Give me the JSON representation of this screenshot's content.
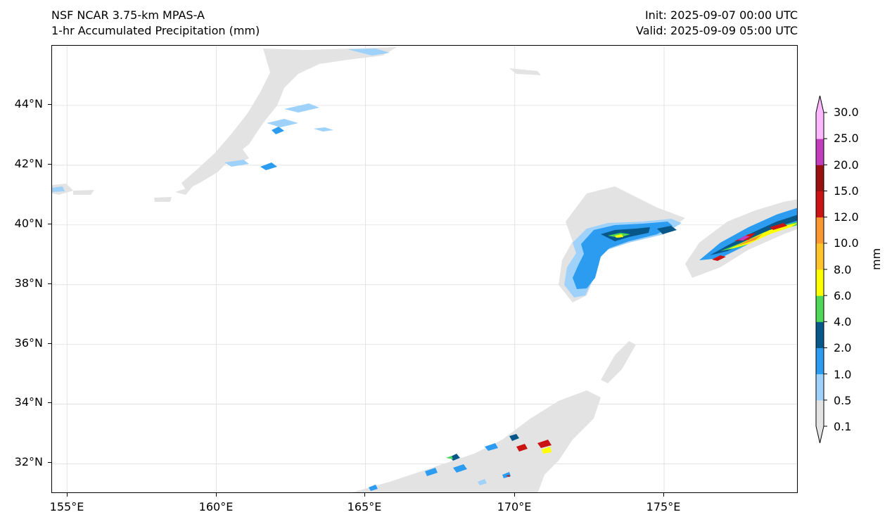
{
  "header": {
    "model": "NSF NCAR 3.75-km MPAS-A",
    "field": "1-hr Accumulated Precipitation (mm)",
    "init": "Init: 2025-09-07 00:00 UTC",
    "valid": "Valid: 2025-09-09 05:00 UTC"
  },
  "map": {
    "lon_range": [
      154.5,
      179.5
    ],
    "lat_range": [
      31.0,
      46.0
    ],
    "lon_ticks": [
      "155°E",
      "160°E",
      "165°E",
      "170°E",
      "175°E"
    ],
    "lat_ticks": [
      "32°N",
      "34°N",
      "36°N",
      "38°N",
      "40°N",
      "42°N",
      "44°N"
    ],
    "gridlines": true
  },
  "colorbar": {
    "unit": "mm",
    "levels": [
      "0.1",
      "0.5",
      "1.0",
      "2.0",
      "4.0",
      "6.0",
      "8.0",
      "10.0",
      "12.0",
      "15.0",
      "20.0",
      "25.0",
      "30.0"
    ],
    "colors": [
      "#e3e3e3",
      "#9ed2fb",
      "#2c9cf0",
      "#075888",
      "#4fd75a",
      "#ffff00",
      "#fec42c",
      "#fb9731",
      "#c91413",
      "#9a0f0f",
      "#c03dbc",
      "#fcb8fc"
    ],
    "extend": "both"
  }
}
